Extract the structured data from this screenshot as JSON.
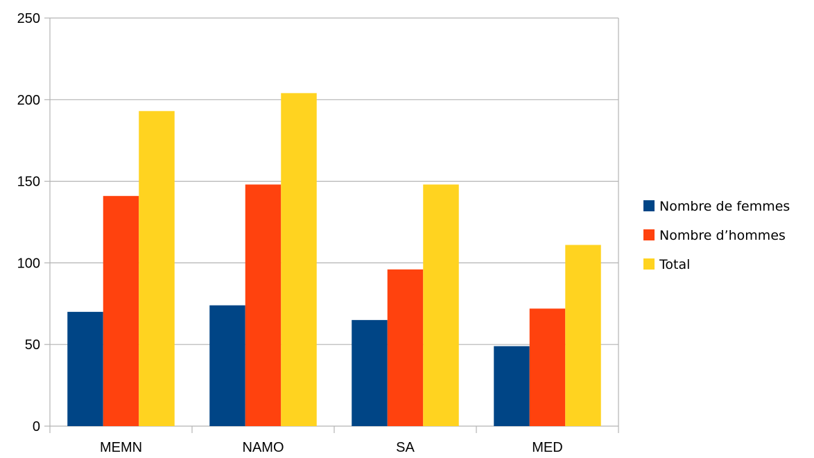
{
  "chart_data": {
    "type": "bar",
    "categories": [
      "MEMN",
      "NAMO",
      "SA",
      "MED"
    ],
    "series": [
      {
        "name": "Nombre de femmes",
        "color": "#004586",
        "values": [
          70,
          74,
          65,
          49
        ]
      },
      {
        "name": "Nombre d’hommes",
        "color": "#ff420e",
        "values": [
          141,
          148,
          96,
          72
        ]
      },
      {
        "name": "Total",
        "color": "#ffd320",
        "values": [
          193,
          204,
          148,
          111
        ]
      }
    ],
    "ylim": [
      0,
      250
    ],
    "yticks": [
      0,
      50,
      100,
      150,
      200,
      250
    ],
    "grid": true,
    "legend_position": "right"
  }
}
